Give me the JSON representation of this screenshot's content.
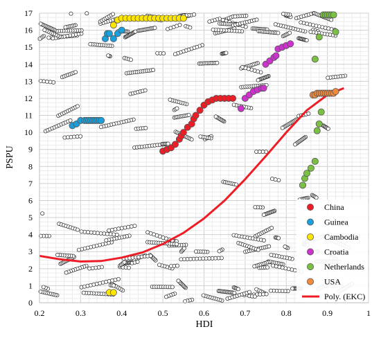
{
  "chart_data": {
    "type": "scatter",
    "xlabel": "HDI",
    "ylabel": "PSPU",
    "xlim": [
      0.2,
      1.0
    ],
    "ylim": [
      0,
      17
    ],
    "xticks": [
      "0.2",
      "0.3",
      "0.4",
      "0.5",
      "0.6",
      "0.7",
      "0.8",
      "0.9",
      "1"
    ],
    "yticks": [
      "0",
      "1",
      "2",
      "3",
      "4",
      "5",
      "6",
      "7",
      "8",
      "9",
      "10",
      "11",
      "12",
      "13",
      "14",
      "15",
      "16",
      "17"
    ],
    "grid": true,
    "legend_position": "bottom-right",
    "background_points_style": "hollow black circles",
    "series": [
      {
        "name": "China",
        "color": "#ee1c24",
        "points": [
          [
            0.5,
            8.9
          ],
          [
            0.51,
            9.0
          ],
          [
            0.52,
            9.1
          ],
          [
            0.53,
            9.3
          ],
          [
            0.54,
            9.6
          ],
          [
            0.545,
            9.8
          ],
          [
            0.55,
            10.0
          ],
          [
            0.56,
            10.3
          ],
          [
            0.57,
            10.5
          ],
          [
            0.575,
            10.8
          ],
          [
            0.58,
            11.0
          ],
          [
            0.59,
            11.3
          ],
          [
            0.6,
            11.6
          ],
          [
            0.61,
            11.8
          ],
          [
            0.62,
            11.9
          ],
          [
            0.63,
            12.0
          ],
          [
            0.64,
            12.0
          ],
          [
            0.65,
            12.0
          ],
          [
            0.66,
            12.0
          ],
          [
            0.67,
            12.0
          ]
        ]
      },
      {
        "name": "Guinea",
        "color": "#1a9fdb",
        "points": [
          [
            0.28,
            10.4
          ],
          [
            0.29,
            10.5
          ],
          [
            0.3,
            10.7
          ],
          [
            0.31,
            10.7
          ],
          [
            0.315,
            10.7
          ],
          [
            0.32,
            10.7
          ],
          [
            0.325,
            10.7
          ],
          [
            0.33,
            10.7
          ],
          [
            0.335,
            10.7
          ],
          [
            0.34,
            10.7
          ],
          [
            0.345,
            10.7
          ],
          [
            0.35,
            10.7
          ],
          [
            0.36,
            15.5
          ],
          [
            0.365,
            15.8
          ],
          [
            0.37,
            15.8
          ],
          [
            0.38,
            15.5
          ],
          [
            0.39,
            15.8
          ],
          [
            0.4,
            16.0
          ]
        ]
      },
      {
        "name": "Cambodia",
        "color": "#ffe600",
        "points": [
          [
            0.37,
            0.6
          ],
          [
            0.38,
            0.6
          ],
          [
            0.38,
            16.3
          ],
          [
            0.39,
            16.6
          ],
          [
            0.4,
            16.7
          ],
          [
            0.41,
            16.7
          ],
          [
            0.42,
            16.7
          ],
          [
            0.43,
            16.7
          ],
          [
            0.44,
            16.7
          ],
          [
            0.45,
            16.7
          ],
          [
            0.46,
            16.7
          ],
          [
            0.47,
            16.7
          ],
          [
            0.48,
            16.7
          ],
          [
            0.49,
            16.7
          ],
          [
            0.5,
            16.7
          ],
          [
            0.51,
            16.7
          ],
          [
            0.52,
            16.7
          ],
          [
            0.53,
            16.7
          ],
          [
            0.54,
            16.7
          ],
          [
            0.55,
            16.7
          ]
        ]
      },
      {
        "name": "Croatia",
        "color": "#cc33cc",
        "points": [
          [
            0.69,
            11.4
          ],
          [
            0.7,
            12.0
          ],
          [
            0.71,
            12.2
          ],
          [
            0.72,
            12.4
          ],
          [
            0.73,
            12.5
          ],
          [
            0.74,
            12.6
          ],
          [
            0.745,
            12.6
          ],
          [
            0.75,
            14.0
          ],
          [
            0.76,
            14.2
          ],
          [
            0.77,
            14.4
          ],
          [
            0.775,
            14.5
          ],
          [
            0.78,
            14.9
          ],
          [
            0.79,
            15.0
          ],
          [
            0.8,
            15.1
          ],
          [
            0.81,
            15.2
          ]
        ]
      },
      {
        "name": "Netherlands",
        "color": "#7ac143",
        "points": [
          [
            0.84,
            6.9
          ],
          [
            0.845,
            7.3
          ],
          [
            0.85,
            7.6
          ],
          [
            0.86,
            7.9
          ],
          [
            0.87,
            8.3
          ],
          [
            0.875,
            10.1
          ],
          [
            0.88,
            10.5
          ],
          [
            0.885,
            11.2
          ],
          [
            0.87,
            14.3
          ],
          [
            0.88,
            15.6
          ],
          [
            0.89,
            16.9
          ],
          [
            0.895,
            16.9
          ],
          [
            0.9,
            16.9
          ],
          [
            0.905,
            16.9
          ],
          [
            0.91,
            16.9
          ],
          [
            0.915,
            16.9
          ],
          [
            0.92,
            15.9
          ]
        ]
      },
      {
        "name": "USA",
        "color": "#f08a3c",
        "points": [
          [
            0.865,
            12.2
          ],
          [
            0.87,
            12.2
          ],
          [
            0.875,
            12.3
          ],
          [
            0.88,
            12.3
          ],
          [
            0.885,
            12.3
          ],
          [
            0.89,
            12.3
          ],
          [
            0.895,
            12.3
          ],
          [
            0.9,
            12.3
          ],
          [
            0.905,
            12.3
          ],
          [
            0.91,
            12.3
          ],
          [
            0.915,
            12.3
          ],
          [
            0.92,
            12.4
          ]
        ]
      }
    ],
    "trendline": {
      "name": "Poly. (EKC)",
      "color": "#ee1c24",
      "curve": [
        [
          0.2,
          2.75
        ],
        [
          0.25,
          2.55
        ],
        [
          0.3,
          2.42
        ],
        [
          0.35,
          2.45
        ],
        [
          0.4,
          2.65
        ],
        [
          0.45,
          2.95
        ],
        [
          0.5,
          3.45
        ],
        [
          0.55,
          4.1
        ],
        [
          0.6,
          4.95
        ],
        [
          0.65,
          6.0
        ],
        [
          0.7,
          7.25
        ],
        [
          0.75,
          8.6
        ],
        [
          0.8,
          10.0
        ],
        [
          0.85,
          11.3
        ],
        [
          0.9,
          12.2
        ],
        [
          0.94,
          12.6
        ]
      ]
    }
  }
}
